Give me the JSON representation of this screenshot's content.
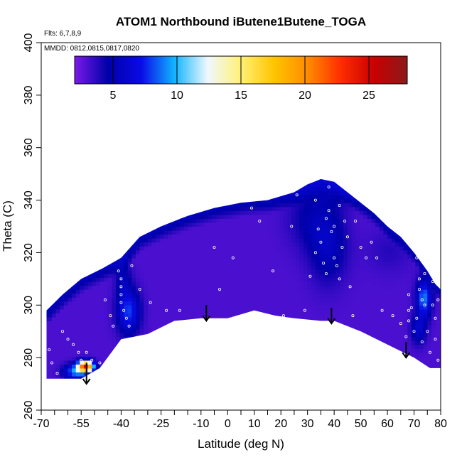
{
  "chart_data": {
    "type": "heatmap",
    "title": "ATOM1 Northbound iButene1Butene_TOGA",
    "subtitle_flights": "Flts: 6,7,8,9",
    "subtitle_dates": "MMDD: 0812,0815,0817,0820",
    "xlabel": "Latitude (deg N)",
    "ylabel": "Theta (C)",
    "xlim": [
      -70,
      80
    ],
    "ylim": [
      260,
      400
    ],
    "x_ticks": [
      -70,
      -55,
      -40,
      -25,
      -10,
      0,
      10,
      20,
      30,
      40,
      50,
      60,
      70,
      80
    ],
    "x_minor_ticks": [
      -65,
      -60,
      -50,
      -45,
      -35,
      -30,
      -20,
      -15,
      -5,
      5,
      15,
      25,
      35,
      45,
      55,
      65,
      75
    ],
    "y_ticks": [
      260,
      280,
      300,
      320,
      340,
      360,
      380,
      400
    ],
    "colorbar": {
      "range": [
        2,
        28
      ],
      "ticks": [
        5,
        10,
        15,
        20,
        25
      ],
      "colors": [
        "#7a1ae8",
        "#0000a8",
        "#0a0ae6",
        "#12b4ff",
        "#f0f8ff",
        "#fff176",
        "#ffc400",
        "#ff8c00",
        "#ff2d00",
        "#c80000",
        "#8b1a1a"
      ]
    },
    "region": {
      "upper_boundary": [
        [
          -68,
          298
        ],
        [
          -62,
          304
        ],
        [
          -55,
          310
        ],
        [
          -47,
          314
        ],
        [
          -40,
          318
        ],
        [
          -33,
          326
        ],
        [
          -25,
          330
        ],
        [
          -15,
          334
        ],
        [
          -5,
          337
        ],
        [
          5,
          339
        ],
        [
          15,
          340
        ],
        [
          25,
          343
        ],
        [
          30,
          346
        ],
        [
          35,
          348
        ],
        [
          40,
          347
        ],
        [
          45,
          343
        ],
        [
          50,
          339
        ],
        [
          55,
          335
        ],
        [
          60,
          330
        ],
        [
          65,
          326
        ],
        [
          70,
          320
        ],
        [
          75,
          313
        ],
        [
          78,
          308
        ],
        [
          80,
          306
        ]
      ],
      "lower_boundary": [
        [
          80,
          276
        ],
        [
          76,
          276
        ],
        [
          70,
          280
        ],
        [
          60,
          285
        ],
        [
          50,
          290
        ],
        [
          40,
          294
        ],
        [
          35,
          294
        ],
        [
          25,
          295
        ],
        [
          18,
          296
        ],
        [
          10,
          298
        ],
        [
          0,
          295
        ],
        [
          -10,
          295
        ],
        [
          -20,
          294
        ],
        [
          -30,
          289
        ],
        [
          -40,
          287
        ],
        [
          -48,
          276
        ],
        [
          -55,
          272
        ],
        [
          -60,
          272
        ],
        [
          -68,
          272
        ]
      ],
      "base_value": 3
    },
    "hotspots": [
      {
        "lon": 37,
        "theta": 322,
        "sx": 5,
        "sy": 10,
        "amp": 2.5
      },
      {
        "lon": 30,
        "theta": 332,
        "sx": 6,
        "sy": 8,
        "amp": 1.5
      },
      {
        "lon": -38,
        "theta": 297,
        "sx": 3,
        "sy": 6,
        "amp": 5
      },
      {
        "lon": -40,
        "theta": 310,
        "sx": 2,
        "sy": 5,
        "amp": 2
      },
      {
        "lon": 73,
        "theta": 302,
        "sx": 2,
        "sy": 5,
        "amp": 6
      },
      {
        "lon": 71,
        "theta": 290,
        "sx": 2,
        "sy": 4,
        "amp": 3
      },
      {
        "lon": -54,
        "theta": 276,
        "sx": 2,
        "sy": 1.5,
        "amp": 20
      },
      {
        "lon": -58,
        "theta": 274,
        "sx": 3,
        "sy": 2,
        "amp": 6
      },
      {
        "lon": 40,
        "theta": 343,
        "sx": 8,
        "sy": 4,
        "amp": 1.5
      },
      {
        "lon": 60,
        "theta": 320,
        "sx": 6,
        "sy": 6,
        "amp": 0.8
      }
    ],
    "arrows": [
      {
        "lon": -53,
        "theta_top": 278,
        "theta_bottom": 270
      },
      {
        "lon": -8,
        "theta_top": 300,
        "theta_bottom": 294
      },
      {
        "lon": 39,
        "theta_top": 299,
        "theta_bottom": 293
      },
      {
        "lon": 67,
        "theta_top": 286,
        "theta_bottom": 280
      }
    ],
    "samples": [
      [
        -67,
        283
      ],
      [
        -66,
        278
      ],
      [
        -64,
        274
      ],
      [
        -62,
        290
      ],
      [
        -60,
        287
      ],
      [
        -58,
        285
      ],
      [
        -56,
        282
      ],
      [
        -55,
        279
      ],
      [
        -53,
        282
      ],
      [
        -51,
        279
      ],
      [
        -48,
        278
      ],
      [
        -46,
        302
      ],
      [
        -44,
        296
      ],
      [
        -43,
        292
      ],
      [
        -41,
        313
      ],
      [
        -40,
        310
      ],
      [
        -40,
        307
      ],
      [
        -40,
        304
      ],
      [
        -40,
        301
      ],
      [
        -39,
        298
      ],
      [
        -38,
        295
      ],
      [
        -37,
        292
      ],
      [
        -36,
        315
      ],
      [
        -33,
        306
      ],
      [
        -29,
        301
      ],
      [
        -23,
        298
      ],
      [
        -18,
        298
      ],
      [
        -5,
        322
      ],
      [
        -3,
        306
      ],
      [
        2,
        318
      ],
      [
        5,
        340
      ],
      [
        9,
        337
      ],
      [
        12,
        332
      ],
      [
        17,
        313
      ],
      [
        21,
        296
      ],
      [
        24,
        330
      ],
      [
        26,
        342
      ],
      [
        27,
        294
      ],
      [
        29,
        298
      ],
      [
        31,
        311
      ],
      [
        33,
        320
      ],
      [
        33,
        340
      ],
      [
        34,
        329
      ],
      [
        35,
        324
      ],
      [
        36,
        316
      ],
      [
        37,
        312
      ],
      [
        37,
        333
      ],
      [
        38,
        345
      ],
      [
        38,
        336
      ],
      [
        39,
        328
      ],
      [
        40,
        318
      ],
      [
        40,
        330
      ],
      [
        41,
        315
      ],
      [
        42,
        338
      ],
      [
        42,
        310
      ],
      [
        43,
        322
      ],
      [
        44,
        332
      ],
      [
        45,
        326
      ],
      [
        46,
        307
      ],
      [
        47,
        296
      ],
      [
        48,
        332
      ],
      [
        50,
        322
      ],
      [
        52,
        318
      ],
      [
        54,
        324
      ],
      [
        56,
        318
      ],
      [
        58,
        298
      ],
      [
        62,
        296
      ],
      [
        65,
        293
      ],
      [
        67,
        288
      ],
      [
        68,
        294
      ],
      [
        68,
        298
      ],
      [
        68,
        304
      ],
      [
        69,
        299
      ],
      [
        70,
        290
      ],
      [
        71,
        295
      ],
      [
        71,
        318
      ],
      [
        72,
        310
      ],
      [
        72,
        306
      ],
      [
        73,
        302
      ],
      [
        73,
        286
      ],
      [
        74,
        312
      ],
      [
        74,
        300
      ],
      [
        75,
        290
      ],
      [
        76,
        282
      ],
      [
        77,
        300
      ],
      [
        77,
        309
      ],
      [
        78,
        295
      ],
      [
        78,
        287
      ],
      [
        79,
        279
      ],
      [
        79,
        302
      ]
    ]
  }
}
